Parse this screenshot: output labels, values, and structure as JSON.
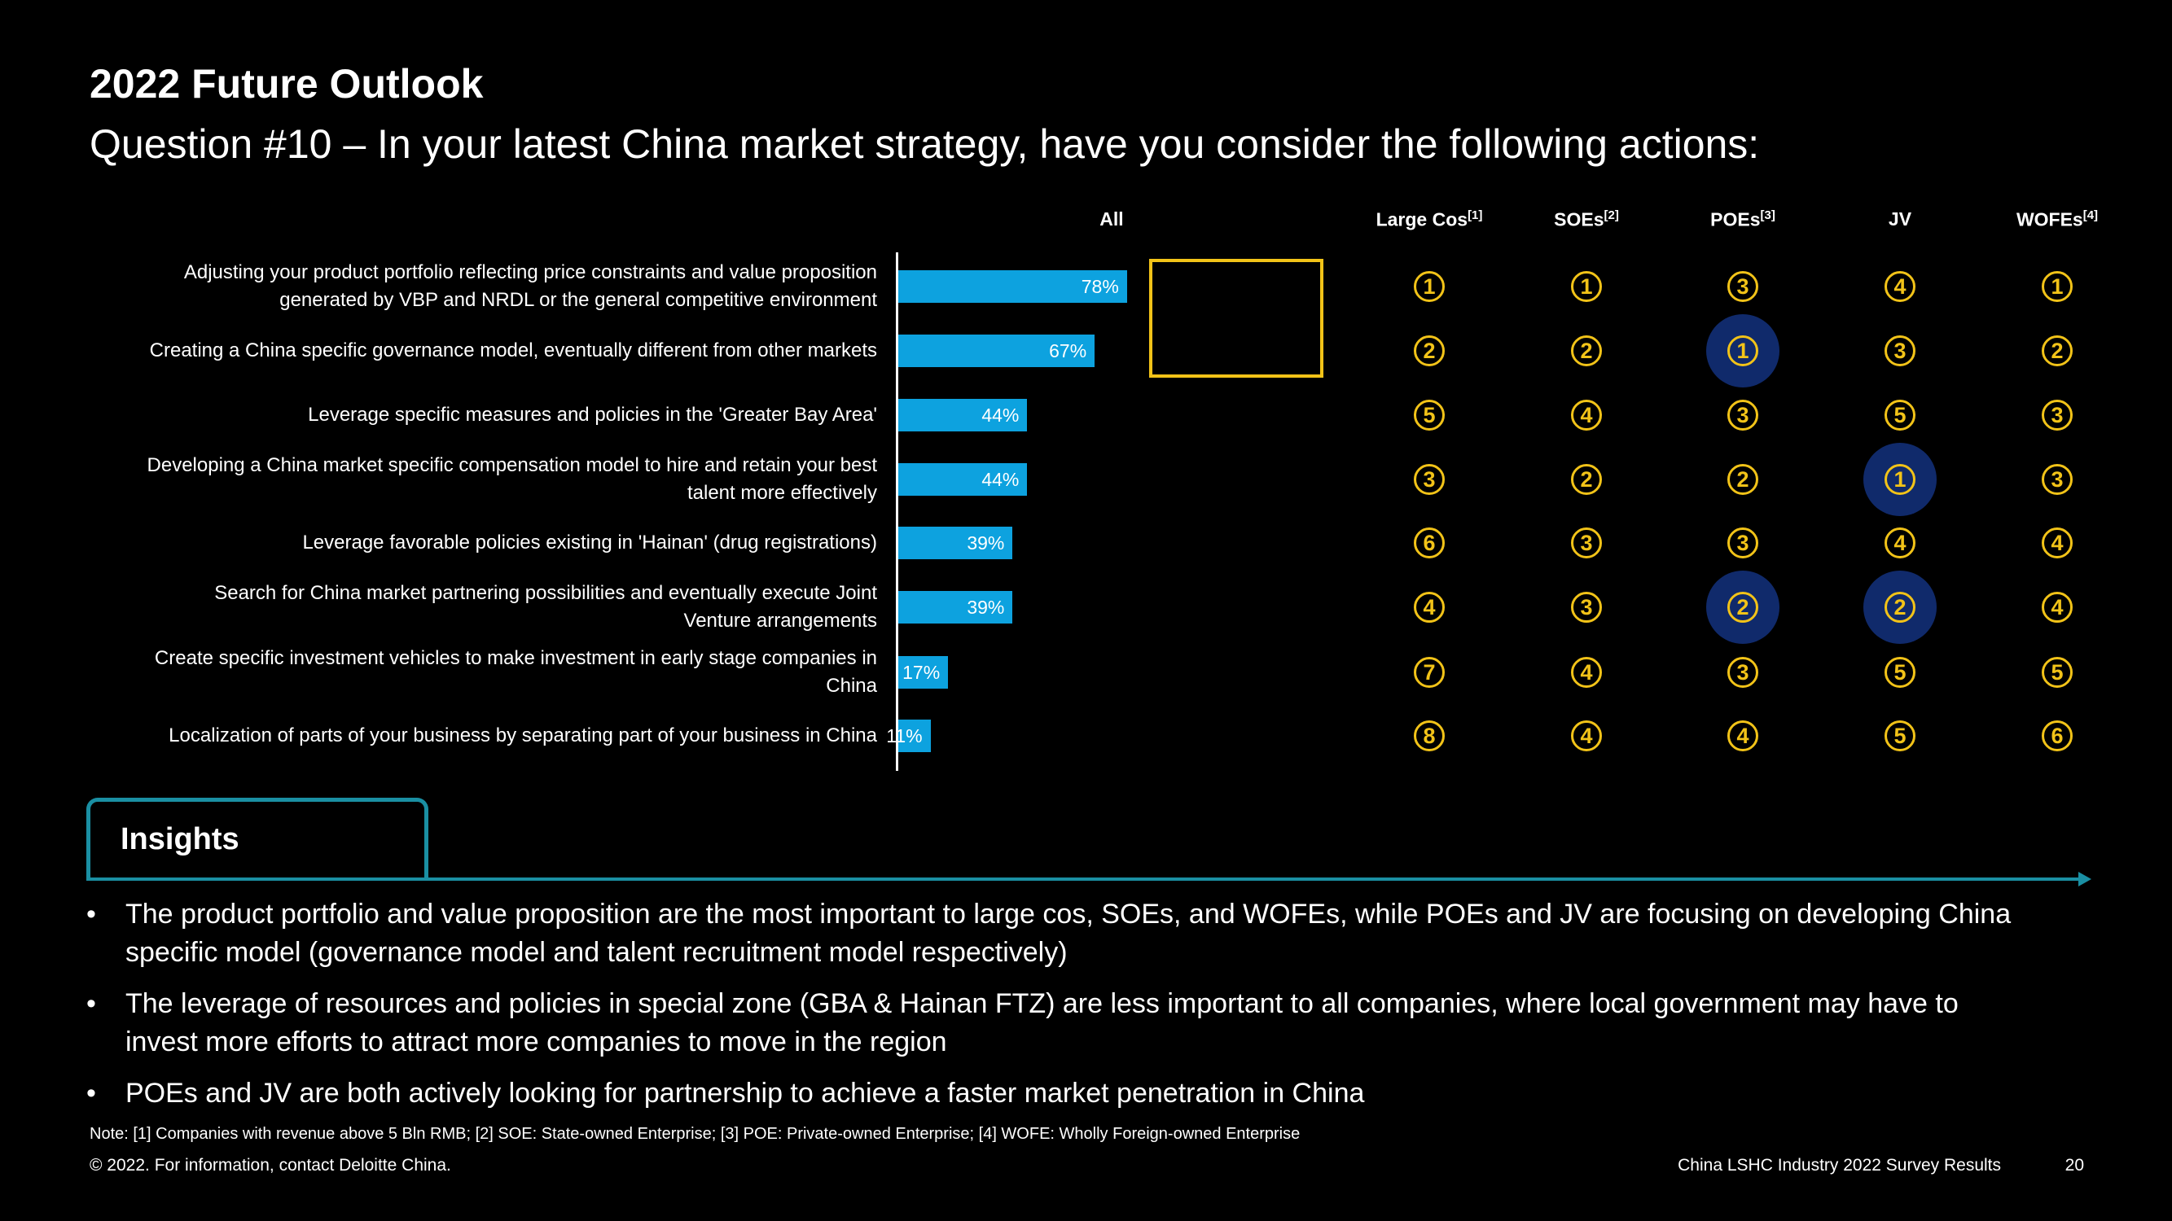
{
  "title": "2022 Future Outlook",
  "subtitle": "Question #10 –  In your latest China market strategy, have you consider the following actions:",
  "chart_data": {
    "type": "bar",
    "orientation": "horizontal",
    "column_header": "All",
    "categories": [
      "Adjusting your product portfolio reflecting price constraints and value proposition generated by VBP and NRDL or the general competitive environment",
      "Creating a China specific governance model, eventually different from other markets",
      "Leverage specific measures and policies in the 'Greater Bay Area'",
      "Developing a China market specific compensation model to hire and retain your best talent more effectively",
      "Leverage favorable policies existing in 'Hainan' (drug registrations)",
      "Search for China market partnering possibilities and eventually execute Joint Venture arrangements",
      "Create specific investment vehicles to make investment in early stage companies in China",
      "Localization of parts of your business by separating part of your business in China"
    ],
    "category_lines": [
      [
        "Adjusting your product portfolio reflecting price constraints and value proposition",
        "generated by VBP and NRDL or the general competitive environment"
      ],
      [
        "Creating a China specific governance model, eventually different from other markets"
      ],
      [
        "Leverage specific measures and policies in the 'Greater Bay Area'"
      ],
      [
        "Developing a China market specific compensation model to hire and retain your best",
        "talent more effectively"
      ],
      [
        "Leverage favorable policies existing in 'Hainan' (drug registrations)"
      ],
      [
        "Search for China market partnering possibilities and eventually execute Joint",
        "Venture arrangements"
      ],
      [
        "Create specific investment vehicles to make investment in early stage companies in",
        "China"
      ],
      [
        "Localization of parts of your business by separating part of your business in China"
      ]
    ],
    "values": [
      78,
      67,
      44,
      44,
      39,
      39,
      17,
      11
    ],
    "value_labels": [
      "78%",
      "67%",
      "44%",
      "44%",
      "39%",
      "39%",
      "17%",
      "11%"
    ],
    "bar_color": "#0da2df",
    "highlight_color": "#f2c318",
    "highlighted_rows": [
      0,
      1
    ],
    "rank_columns": [
      {
        "name": "Large Cos",
        "sup": "[1]",
        "ranks": [
          "1",
          "2",
          "5",
          "3",
          "6",
          "4",
          "7",
          "8"
        ],
        "highlighted": []
      },
      {
        "name": "SOEs",
        "sup": "[2]",
        "ranks": [
          "1",
          "2",
          "4",
          "2",
          "3",
          "3",
          "4",
          "4"
        ],
        "highlighted": []
      },
      {
        "name": "POEs",
        "sup": "[3]",
        "ranks": [
          "3",
          "1",
          "3",
          "2",
          "3",
          "2",
          "3",
          "4"
        ],
        "highlighted": [
          1,
          5
        ]
      },
      {
        "name": "JV",
        "sup": "",
        "ranks": [
          "4",
          "3",
          "5",
          "1",
          "4",
          "2",
          "5",
          "5"
        ],
        "highlighted": [
          3,
          5
        ]
      },
      {
        "name": "WOFEs",
        "sup": "[4]",
        "ranks": [
          "1",
          "2",
          "3",
          "3",
          "4",
          "4",
          "5",
          "6"
        ],
        "highlighted": []
      }
    ],
    "rank_color": "#f2c318",
    "rank_highlight_bg": "#102a6b"
  },
  "insights": {
    "title": "Insights",
    "bullet": "•",
    "items": [
      [
        "The product portfolio and value proposition are the most important to large cos, SOEs, and WOFEs, while POEs and JV are focusing on developing China",
        "specific model (governance model and talent recruitment model respectively)"
      ],
      [
        "The leverage of resources and policies in special zone (GBA & Hainan FTZ) are less important to all companies, where local government may have to",
        "invest more efforts to attract more companies to move in the region"
      ],
      [
        "POEs and JV are both actively looking for partnership to achieve a faster market penetration in China"
      ]
    ],
    "accent_color": "#1a8fa3"
  },
  "footer": {
    "note": "Note: [1] Companies with revenue above 5 Bln RMB; [2] SOE: State-owned Enterprise; [3] POE: Private-owned Enterprise; [4] WOFE: Wholly Foreign-owned Enterprise",
    "copyright": "© 2022. For information, contact Deloitte China.",
    "report_title": "China LSHC Industry 2022 Survey Results",
    "page_number": "20"
  }
}
